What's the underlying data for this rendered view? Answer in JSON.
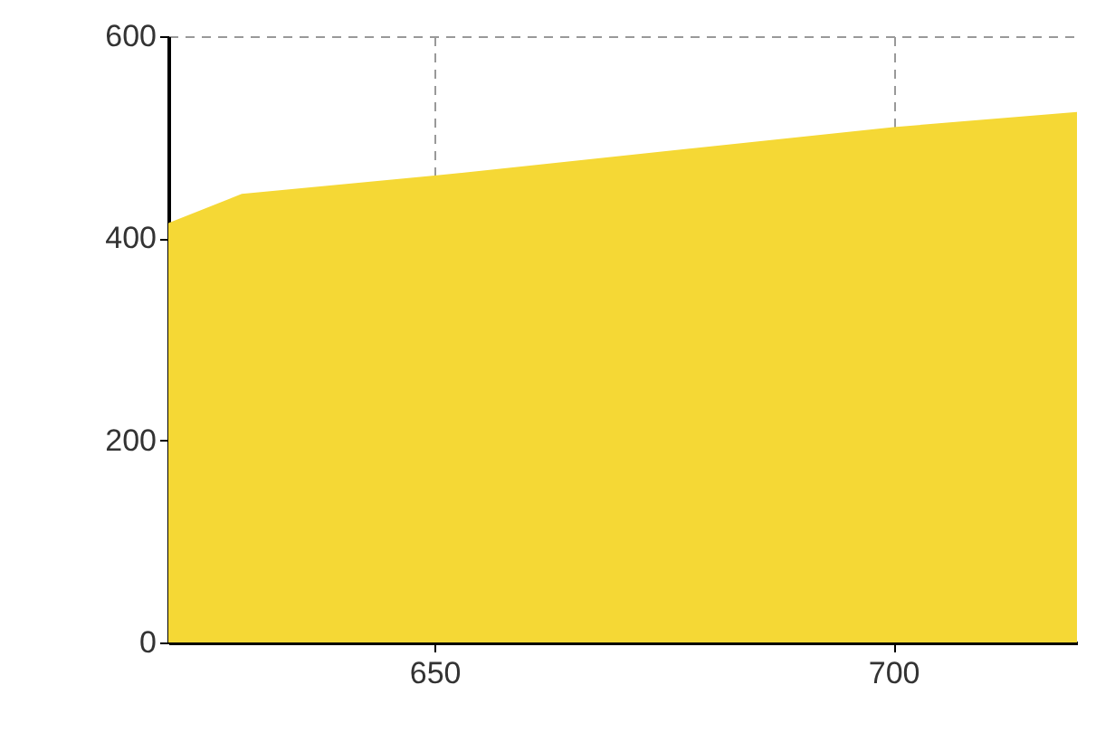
{
  "chart_data": {
    "type": "area",
    "x": [
      621,
      629,
      650,
      700,
      720
    ],
    "series": [
      {
        "color": "#f5d835",
        "values": [
          415,
          444,
          462,
          510,
          525
        ]
      }
    ],
    "xlim": [
      621,
      720
    ],
    "xticks": [
      650,
      700
    ],
    "ylim": [
      0,
      600
    ],
    "yticks": [
      0,
      200,
      400,
      600
    ],
    "grid": true
  }
}
